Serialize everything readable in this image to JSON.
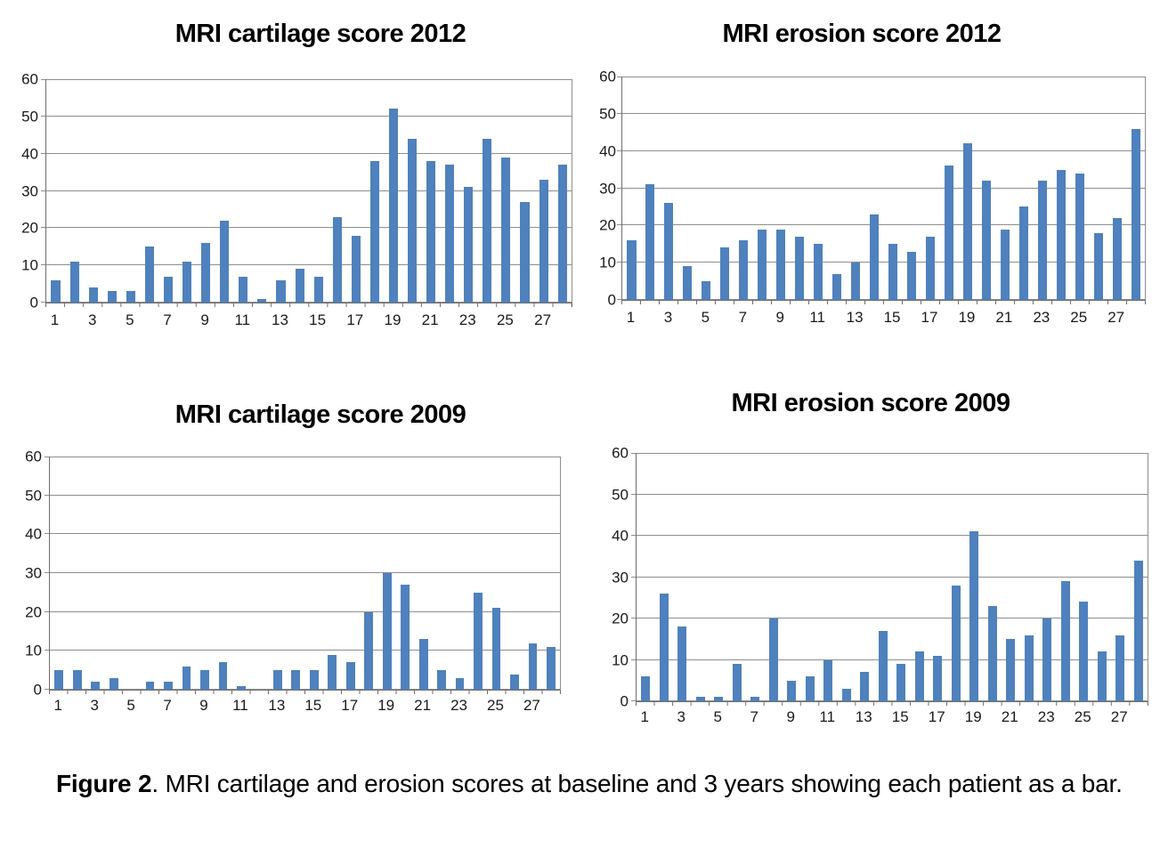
{
  "colors": {
    "bar": "#4f81bd",
    "gridline": "#8e8e8e",
    "axis": "#6e6e6e",
    "text": "#1a1a1a"
  },
  "caption": {
    "label": "Figure 2",
    "text": ". MRI cartilage and erosion scores at baseline and 3 years showing each patient as a bar."
  },
  "chart_data": [
    {
      "type": "bar",
      "title": "MRI cartilage score 2012",
      "xlabel": "",
      "ylabel": "",
      "ylim": [
        0,
        60
      ],
      "yticks": [
        0,
        10,
        20,
        30,
        40,
        50,
        60
      ],
      "grid": true,
      "legend": false,
      "categories": [
        1,
        2,
        3,
        4,
        5,
        6,
        7,
        8,
        9,
        10,
        11,
        12,
        13,
        14,
        15,
        16,
        17,
        18,
        19,
        20,
        21,
        22,
        23,
        24,
        25,
        26,
        27,
        28
      ],
      "xtick_labels": [
        1,
        3,
        5,
        7,
        9,
        11,
        13,
        15,
        17,
        19,
        21,
        23,
        25,
        27
      ],
      "values": [
        6,
        11,
        4,
        3,
        3,
        15,
        7,
        11,
        16,
        22,
        7,
        1,
        6,
        9,
        7,
        23,
        18,
        38,
        52,
        44,
        38,
        37,
        31,
        44,
        39,
        27,
        33,
        37
      ]
    },
    {
      "type": "bar",
      "title": "MRI erosion score 2012",
      "xlabel": "",
      "ylabel": "",
      "ylim": [
        0,
        60
      ],
      "yticks": [
        0,
        10,
        20,
        30,
        40,
        50,
        60
      ],
      "grid": true,
      "legend": false,
      "categories": [
        1,
        2,
        3,
        4,
        5,
        6,
        7,
        8,
        9,
        10,
        11,
        12,
        13,
        14,
        15,
        16,
        17,
        18,
        19,
        20,
        21,
        22,
        23,
        24,
        25,
        26,
        27,
        28
      ],
      "xtick_labels": [
        1,
        3,
        5,
        7,
        9,
        11,
        13,
        15,
        17,
        19,
        21,
        23,
        25,
        27
      ],
      "values": [
        16,
        31,
        26,
        9,
        5,
        14,
        16,
        19,
        19,
        17,
        15,
        7,
        10,
        23,
        15,
        13,
        17,
        36,
        42,
        32,
        19,
        25,
        32,
        35,
        34,
        18,
        22,
        46
      ]
    },
    {
      "type": "bar",
      "title": "MRI cartilage score 2009",
      "xlabel": "",
      "ylabel": "",
      "ylim": [
        0,
        60
      ],
      "yticks": [
        0,
        10,
        20,
        30,
        40,
        50,
        60
      ],
      "grid": true,
      "legend": false,
      "categories": [
        1,
        2,
        3,
        4,
        5,
        6,
        7,
        8,
        9,
        10,
        11,
        12,
        13,
        14,
        15,
        16,
        17,
        18,
        19,
        20,
        21,
        22,
        23,
        24,
        25,
        26,
        27,
        28
      ],
      "xtick_labels": [
        1,
        3,
        5,
        7,
        9,
        11,
        13,
        15,
        17,
        19,
        21,
        23,
        25,
        27
      ],
      "values": [
        5,
        5,
        2,
        3,
        0,
        2,
        2,
        6,
        5,
        7,
        1,
        0,
        5,
        5,
        5,
        9,
        7,
        20,
        30,
        27,
        13,
        5,
        3,
        25,
        21,
        4,
        12,
        11
      ]
    },
    {
      "type": "bar",
      "title": "MRI erosion score 2009",
      "xlabel": "",
      "ylabel": "",
      "ylim": [
        0,
        60
      ],
      "yticks": [
        0,
        10,
        20,
        30,
        40,
        50,
        60
      ],
      "grid": true,
      "legend": false,
      "categories": [
        1,
        2,
        3,
        4,
        5,
        6,
        7,
        8,
        9,
        10,
        11,
        12,
        13,
        14,
        15,
        16,
        17,
        18,
        19,
        20,
        21,
        22,
        23,
        24,
        25,
        26,
        27,
        28
      ],
      "xtick_labels": [
        1,
        3,
        5,
        7,
        9,
        11,
        13,
        15,
        17,
        19,
        21,
        23,
        25,
        27
      ],
      "values": [
        6,
        26,
        18,
        1,
        1,
        9,
        1,
        20,
        5,
        6,
        10,
        3,
        7,
        17,
        9,
        12,
        11,
        28,
        41,
        23,
        15,
        16,
        20,
        29,
        24,
        12,
        16,
        34
      ]
    }
  ]
}
